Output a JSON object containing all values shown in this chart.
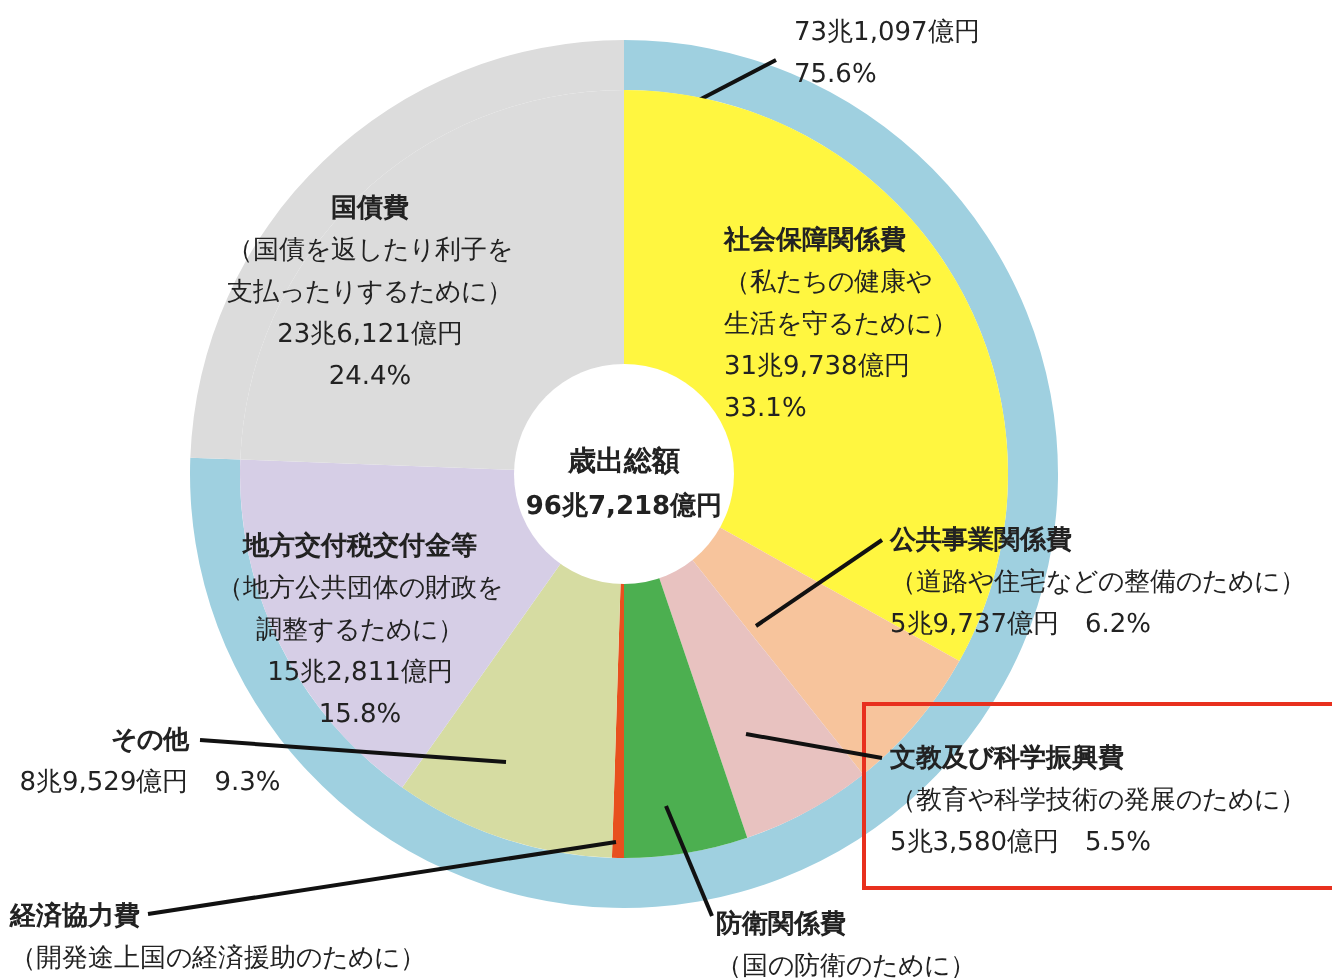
{
  "chart_data": [
    {
      "type": "donut",
      "title": "歳出総額",
      "subtitle": "96兆7,218億円",
      "categories": [
        "社会保障関係費",
        "公共事業関係費",
        "文教及び科学振興費",
        "防衛関係費",
        "経済協力費",
        "その他",
        "地方交付税交付金等",
        "国債費"
      ],
      "values": [
        33.1,
        6.2,
        5.5,
        5.2,
        0.5,
        9.3,
        15.8,
        24.4
      ],
      "colors": [
        "#fff640",
        "#f7c49c",
        "#e8c2c0",
        "#4caf50",
        "#e8501e",
        "#d6dca2",
        "#d6cee6",
        "#dcdcdc"
      ],
      "value_labels": [
        "33.1%",
        "6.2%",
        "5.5%",
        null,
        null,
        "9.3%",
        "15.8%",
        "24.4%"
      ],
      "annotations": [
        {
          "text": "（私たちの健康や生活を守るために）",
          "x": "社会保障関係費"
        },
        {
          "text": "31兆9,738億円",
          "x": "社会保障関係費"
        },
        {
          "text": "（道路や住宅などの整備のために）",
          "x": "公共事業関係費"
        },
        {
          "text": "5兆9,737億円",
          "x": "公共事業関係費"
        },
        {
          "text": "（教育や科学技術の発展のために）",
          "x": "文教及び科学振興費"
        },
        {
          "text": "5兆3,580億円",
          "x": "文教及び科学振興費"
        },
        {
          "text": "（国の防衛のために）",
          "x": "防衛関係費"
        },
        {
          "text": "（開発途上国の経済援助のために）",
          "x": "経済協力費"
        },
        {
          "text": "8兆9,529億円",
          "x": "その他"
        },
        {
          "text": "（地方公共団体の財政を調整するために）",
          "x": "地方交付税交付金等"
        },
        {
          "text": "15兆2,811億円",
          "x": "地方交付税交付金等"
        },
        {
          "text": "（国債を返したり利子を支払ったりするために）",
          "x": "国債費"
        },
        {
          "text": "23兆6,121億円",
          "x": "国債費"
        }
      ]
    },
    {
      "type": "donut",
      "categories": [
        null,
        null
      ],
      "values": [
        75.6,
        24.4
      ],
      "colors": [
        "#9fd0e0",
        "#dcdcdc"
      ],
      "value_labels": [
        "75.6%",
        null
      ],
      "annotations": [
        "73兆1,097億円"
      ]
    }
  ]
}
